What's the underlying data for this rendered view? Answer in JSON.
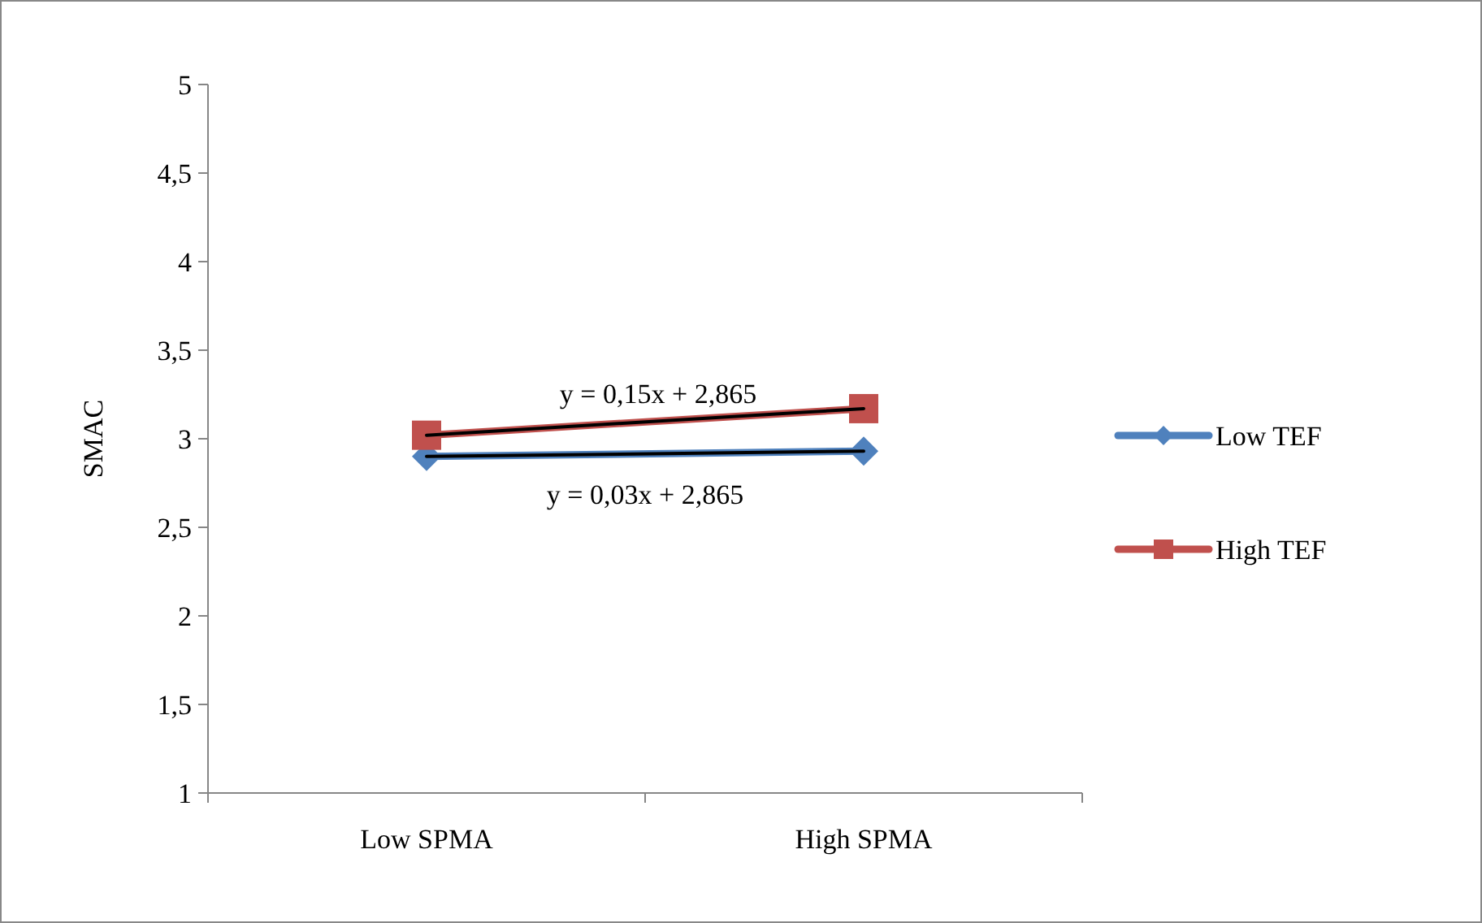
{
  "chart_data": {
    "type": "line",
    "ylabel": "SMAC",
    "categories": [
      "Low SPMA",
      "High SPMA"
    ],
    "ylim": [
      1,
      5
    ],
    "yticks": [
      {
        "value": 1,
        "label": "1"
      },
      {
        "value": 1.5,
        "label": "1,5"
      },
      {
        "value": 2,
        "label": "2"
      },
      {
        "value": 2.5,
        "label": "2,5"
      },
      {
        "value": 3,
        "label": "3"
      },
      {
        "value": 3.5,
        "label": "3,5"
      },
      {
        "value": 4,
        "label": "4"
      },
      {
        "value": 4.5,
        "label": "4,5"
      },
      {
        "value": 5,
        "label": "5"
      }
    ],
    "grid": false,
    "legend": "right",
    "annotations": [
      "y = 0,15x + 2,865",
      "y = 0,03x + 2,865"
    ],
    "series": [
      {
        "name": "Low TEF",
        "color": "#4f81bd",
        "marker": "diamond",
        "values": [
          2.9,
          2.93
        ]
      },
      {
        "name": "High TEF",
        "color": "#c0504d",
        "marker": "square",
        "values": [
          3.02,
          3.17
        ]
      },
      {
        "type": "line",
        "color": "#000000",
        "marker": "none",
        "x": [
          "Low SPMA",
          "High SPMA"
        ],
        "values": [
          2.9,
          2.93
        ]
      },
      {
        "type": "line",
        "color": "#000000",
        "marker": "none",
        "x": [
          "Low SPMA",
          "High SPMA"
        ],
        "values": [
          3.02,
          3.17
        ]
      }
    ]
  }
}
